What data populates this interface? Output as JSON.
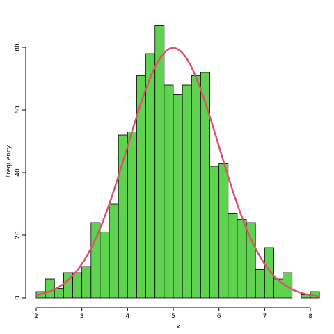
{
  "chart_data": {
    "type": "bar",
    "title": "",
    "xlabel": "x",
    "ylabel": "Frequency",
    "xlim": [
      2,
      8.2
    ],
    "ylim": [
      0,
      88
    ],
    "bin_width": 0.2,
    "bin_start": 2.0,
    "values": [
      2,
      6,
      3,
      8,
      8,
      10,
      24,
      21,
      30,
      52,
      53,
      71,
      78,
      87,
      68,
      65,
      68,
      71,
      72,
      42,
      43,
      27,
      25,
      24,
      9,
      16,
      6,
      8,
      0,
      1,
      2
    ],
    "x_ticks": [
      2,
      3,
      4,
      5,
      6,
      7,
      8
    ],
    "x_tick_labels": [
      "2",
      "3",
      "4",
      "5",
      "6",
      "7",
      "8"
    ],
    "y_ticks": [
      0,
      20,
      40,
      60,
      80
    ],
    "y_tick_labels": [
      "0",
      "20",
      "40",
      "60",
      "80"
    ],
    "bar_color": "#5fd24f",
    "bar_edge_color": "#000000",
    "curve": {
      "type": "normal",
      "mean": 5.0,
      "sd": 1.0,
      "n": 1000,
      "color": "#d9536b"
    },
    "grid": false,
    "legend": "none"
  }
}
